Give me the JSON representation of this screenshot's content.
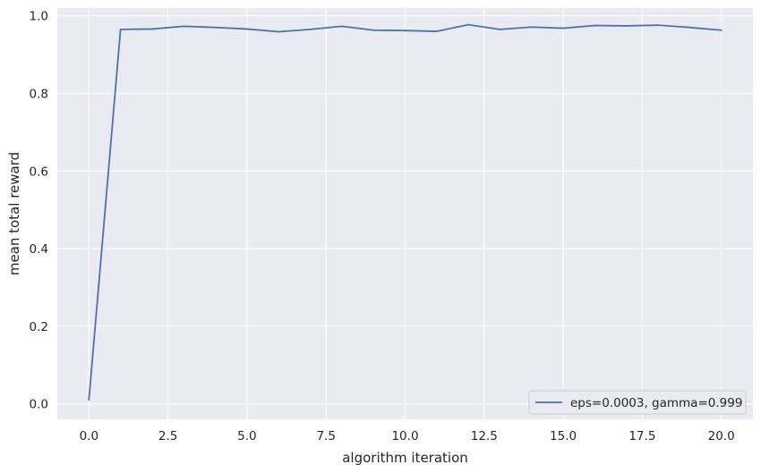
{
  "chart_data": {
    "type": "line",
    "title": "",
    "xlabel": "algorithm iteration",
    "ylabel": "mean total reward",
    "xlim": [
      -1.0,
      21.0
    ],
    "ylim": [
      -0.04,
      1.02
    ],
    "x_ticks": [
      0.0,
      2.5,
      5.0,
      7.5,
      10.0,
      12.5,
      15.0,
      17.5,
      20.0
    ],
    "x_tick_labels": [
      "0.0",
      "2.5",
      "5.0",
      "7.5",
      "10.0",
      "12.5",
      "15.0",
      "17.5",
      "20.0"
    ],
    "y_ticks": [
      0.0,
      0.2,
      0.4,
      0.6,
      0.8,
      1.0
    ],
    "y_tick_labels": [
      "0.0",
      "0.2",
      "0.4",
      "0.6",
      "0.8",
      "1.0"
    ],
    "grid": true,
    "legend_position": "lower-right",
    "series": [
      {
        "name": "eps=0.0003, gamma=0.999",
        "color": "#4c72b0",
        "x": [
          0,
          1,
          2,
          3,
          4,
          5,
          6,
          7,
          8,
          9,
          10,
          11,
          12,
          13,
          14,
          15,
          16,
          17,
          18,
          19,
          20
        ],
        "values": [
          0.01,
          0.965,
          0.966,
          0.973,
          0.97,
          0.966,
          0.959,
          0.965,
          0.973,
          0.963,
          0.962,
          0.96,
          0.977,
          0.965,
          0.971,
          0.968,
          0.975,
          0.974,
          0.976,
          0.97,
          0.963
        ]
      }
    ]
  },
  "colors": {
    "plot_background": "#eaeaf2",
    "grid": "#ffffff",
    "text": "#262626"
  }
}
